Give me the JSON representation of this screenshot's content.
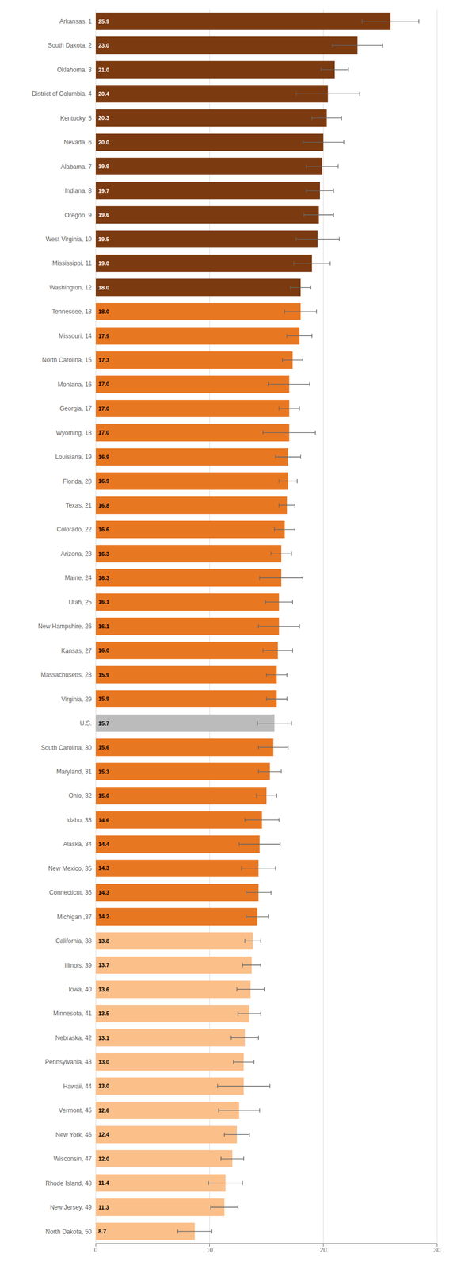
{
  "chart_data": {
    "type": "bar",
    "orientation": "horizontal",
    "categories": [
      "Arkansas, 1",
      "South Dakota, 2",
      "Oklahoma, 3",
      "District of Columbia, 4",
      "Kentucky, 5",
      "Nevada, 6",
      "Alabama, 7",
      "Indiana, 8",
      "Oregon, 9",
      "West Virginia, 10",
      "Mississippi, 11",
      "Washington, 12",
      "Tennessee, 13",
      "Missouri, 14",
      "North Carolina, 15",
      "Montana, 16",
      "Georgia, 17",
      "Wyoming, 18",
      "Louisiana, 19",
      "Florida, 20",
      "Texas, 21",
      "Colorado, 22",
      "Arizona, 23",
      "Maine, 24",
      "Utah, 25",
      "New Hampshire, 26",
      "Kansas, 27",
      "Massachusetts, 28",
      "Virginia, 29",
      "U.S.",
      "South Carolina, 30",
      "Maryland, 31",
      "Ohio, 32",
      "Idaho, 33",
      "Alaska, 34",
      "New Mexico, 35",
      "Connecticut, 36",
      "Michigan ,37",
      "California, 38",
      "Illinois, 39",
      "Iowa, 40",
      "Minnesota, 41",
      "Nebraska, 42",
      "Pennsylvania, 43",
      "Hawaii, 44",
      "Vermont, 45",
      "New York, 46",
      "Wisconsin, 47",
      "Rhode Island, 48",
      "New Jersey, 49",
      "North Dakota, 50"
    ],
    "values": [
      25.9,
      23.0,
      21.0,
      20.4,
      20.3,
      20.0,
      19.9,
      19.7,
      19.6,
      19.5,
      19.0,
      18.0,
      18.0,
      17.9,
      17.3,
      17.0,
      17.0,
      17.0,
      16.9,
      16.9,
      16.8,
      16.6,
      16.3,
      16.3,
      16.1,
      16.1,
      16.0,
      15.9,
      15.9,
      15.7,
      15.6,
      15.3,
      15.0,
      14.6,
      14.4,
      14.3,
      14.3,
      14.2,
      13.8,
      13.7,
      13.6,
      13.5,
      13.1,
      13.0,
      13.0,
      12.6,
      12.4,
      12.0,
      11.4,
      11.3,
      8.7
    ],
    "value_labels": [
      "25.9",
      "23.0",
      "21.0",
      "20.4",
      "20.3",
      "20.0",
      "19.9",
      "19.7",
      "19.6",
      "19.5",
      "19.0",
      "18.0",
      "18.0",
      "17.9",
      "17.3",
      "17.0",
      "17.0",
      "17.0",
      "16.9",
      "16.9",
      "16.8",
      "16.6",
      "16.3",
      "16.3",
      "16.1",
      "16.1",
      "16.0",
      "15.9",
      "15.9",
      "15.7",
      "15.6",
      "15.3",
      "15.0",
      "14.6",
      "14.4",
      "14.3",
      "14.3",
      "14.2",
      "13.8",
      "13.7",
      "13.6",
      "13.5",
      "13.1",
      "13.0",
      "13.0",
      "12.6",
      "12.4",
      "12.0",
      "11.4",
      "11.3",
      "8.7"
    ],
    "errors": [
      2.5,
      2.2,
      1.2,
      2.8,
      1.3,
      1.8,
      1.4,
      1.2,
      1.3,
      1.9,
      1.6,
      0.9,
      1.4,
      1.1,
      0.9,
      1.8,
      0.9,
      2.3,
      1.1,
      0.8,
      0.7,
      0.9,
      0.9,
      1.9,
      1.2,
      1.8,
      1.3,
      0.9,
      0.9,
      1.5,
      1.3,
      1.0,
      0.9,
      1.5,
      1.8,
      1.5,
      1.1,
      1.0,
      0.7,
      0.8,
      1.2,
      1.0,
      1.2,
      0.9,
      2.3,
      1.8,
      1.1,
      1.0,
      1.5,
      1.2,
      1.5
    ],
    "colors": [
      "#7B3A10",
      "#7B3A10",
      "#7B3A10",
      "#7B3A10",
      "#7B3A10",
      "#7B3A10",
      "#7B3A10",
      "#7B3A10",
      "#7B3A10",
      "#7B3A10",
      "#7B3A10",
      "#7B3A10",
      "#E87722",
      "#E87722",
      "#E87722",
      "#E87722",
      "#E87722",
      "#E87722",
      "#E87722",
      "#E87722",
      "#E87722",
      "#E87722",
      "#E87722",
      "#E87722",
      "#E87722",
      "#E87722",
      "#E87722",
      "#E87722",
      "#E87722",
      "#BBBBBB",
      "#E87722",
      "#E87722",
      "#E87722",
      "#E87722",
      "#E87722",
      "#E87722",
      "#E87722",
      "#E87722",
      "#FBBF8A",
      "#FBBF8A",
      "#FBBF8A",
      "#FBBF8A",
      "#FBBF8A",
      "#FBBF8A",
      "#FBBF8A",
      "#FBBF8A",
      "#FBBF8A",
      "#FBBF8A",
      "#FBBF8A",
      "#FBBF8A",
      "#FBBF8A"
    ],
    "xlim": [
      0,
      30
    ],
    "xticks": [
      0,
      10,
      20,
      30
    ],
    "grid": true,
    "data_labels": true
  }
}
